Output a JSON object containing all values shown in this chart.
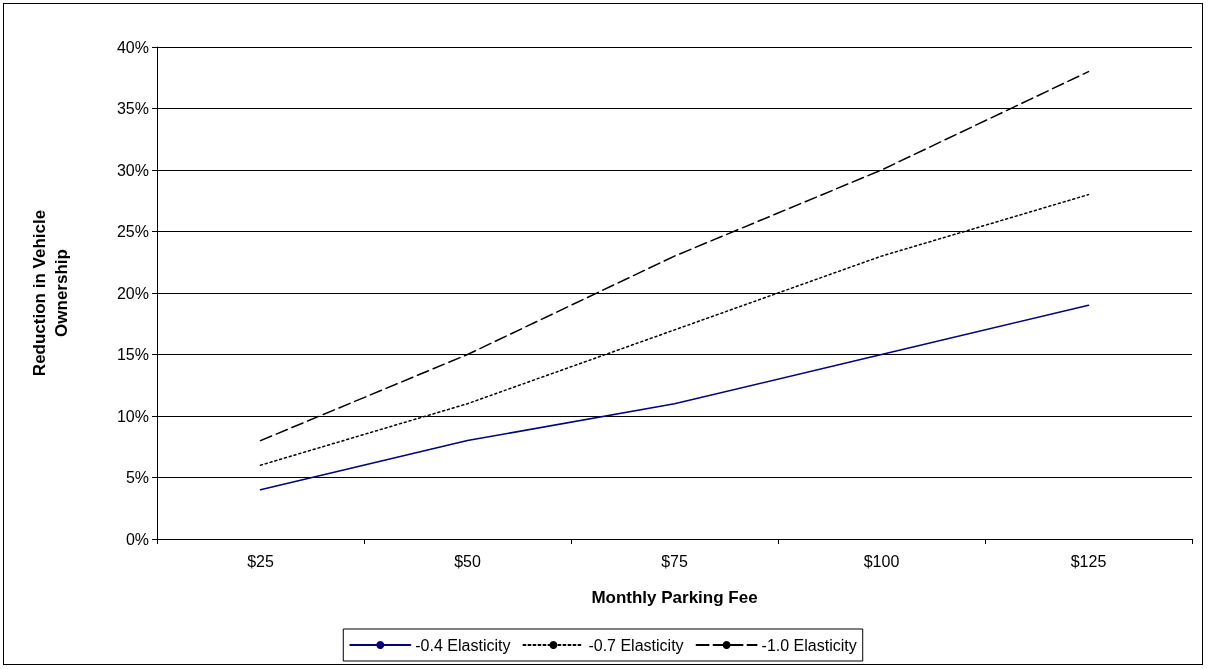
{
  "chart_data": {
    "type": "line",
    "xlabel": "Monthly Parking Fee",
    "ylabel": "Reduction in Vehicle\nOwnership",
    "categories": [
      "$25",
      "$50",
      "$75",
      "$100",
      "$125"
    ],
    "series": [
      {
        "name": "-0.4 Elasticity",
        "color": "#000080",
        "line_style": "solid",
        "values": [
          4,
          8,
          11,
          15,
          19
        ]
      },
      {
        "name": "-0.7 Elasticity",
        "color": "#000000",
        "line_style": "dotted",
        "values": [
          6,
          11,
          17,
          23,
          28
        ]
      },
      {
        "name": "-1.0 Elasticity",
        "color": "#000000",
        "line_style": "dashed",
        "values": [
          8,
          15,
          23,
          30,
          38
        ]
      }
    ],
    "ylim": [
      0,
      40
    ],
    "yticks": [
      {
        "value": 0,
        "label": "0%"
      },
      {
        "value": 5,
        "label": "5%"
      },
      {
        "value": 10,
        "label": "10%"
      },
      {
        "value": 15,
        "label": "15%"
      },
      {
        "value": 20,
        "label": "20%"
      },
      {
        "value": 25,
        "label": "25%"
      },
      {
        "value": 30,
        "label": "30%"
      },
      {
        "value": 35,
        "label": "35%"
      },
      {
        "value": 40,
        "label": "40%"
      }
    ],
    "grid": "y",
    "legend": "bottom",
    "marker": "none"
  }
}
